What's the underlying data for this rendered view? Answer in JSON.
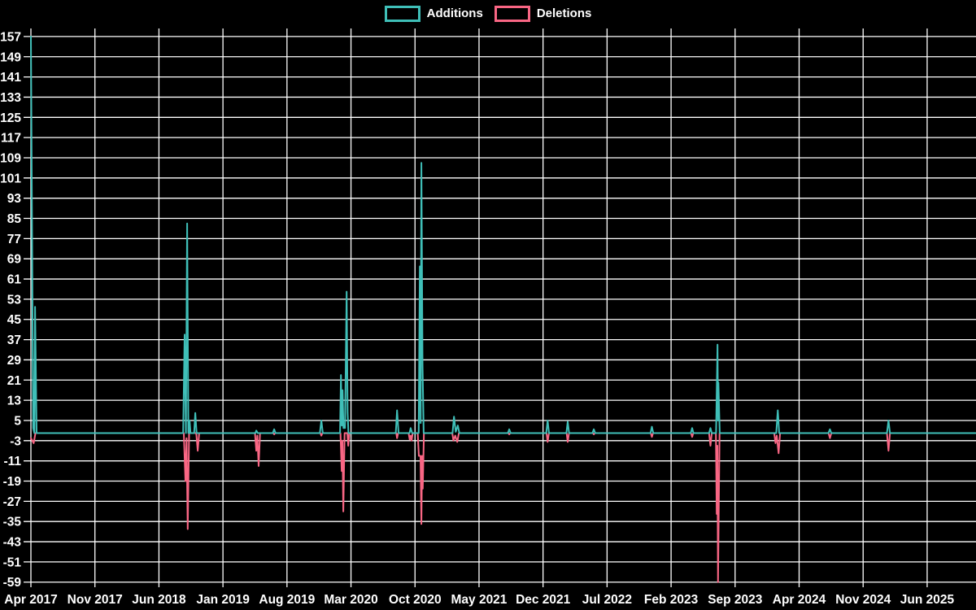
{
  "legend": {
    "additions_label": "Additions",
    "deletions_label": "Deletions"
  },
  "colors": {
    "background": "#000000",
    "grid": "#ffffff",
    "text": "#ffffff",
    "additions": "#3fbfb8",
    "deletions": "#f96684"
  },
  "chart_data": {
    "type": "line",
    "title": "",
    "xlabel": "",
    "ylabel": "",
    "legend_position": "top-center",
    "grid": true,
    "x_axis": {
      "tick_labels": [
        "Apr 2017",
        "Nov 2017",
        "Jun 2018",
        "Jan 2019",
        "Aug 2019",
        "Mar 2020",
        "Oct 2020",
        "May 2021",
        "Dec 2021",
        "Jul 2022",
        "Feb 2023",
        "Sep 2023",
        "Apr 2024",
        "Nov 2024",
        "Jun 2025"
      ],
      "months_per_tick": 7,
      "total_months_drawn": 103.3
    },
    "y_axis": {
      "min": -59,
      "max": 157,
      "tick_step": 8,
      "tick_labels": [
        "157",
        "149",
        "141",
        "133",
        "125",
        "117",
        "109",
        "101",
        "93",
        "85",
        "77",
        "69",
        "61",
        "53",
        "45",
        "37",
        "29",
        "21",
        "13",
        "5",
        "-3",
        "-11",
        "-19",
        "-27",
        "-35",
        "-43",
        "-51",
        "-59"
      ]
    },
    "series": [
      {
        "name": "Additions",
        "color_key": "additions",
        "points_months_vs_value": [
          [
            0,
            157
          ],
          [
            0.25,
            2
          ],
          [
            0.38,
            0
          ],
          [
            0.45,
            50
          ],
          [
            0.62,
            0
          ],
          [
            16.65,
            0
          ],
          [
            16.81,
            39
          ],
          [
            16.95,
            0
          ],
          [
            17.08,
            83
          ],
          [
            17.22,
            0
          ],
          [
            17.3,
            0
          ],
          [
            17.35,
            5
          ],
          [
            17.45,
            0
          ],
          [
            17.85,
            0
          ],
          [
            17.97,
            8
          ],
          [
            18.12,
            0
          ],
          [
            24.55,
            0
          ],
          [
            24.64,
            1
          ],
          [
            24.8,
            0
          ],
          [
            26.45,
            0
          ],
          [
            26.6,
            1.5
          ],
          [
            26.75,
            0
          ],
          [
            31.6,
            0
          ],
          [
            31.76,
            5
          ],
          [
            31.92,
            0
          ],
          [
            33.8,
            0
          ],
          [
            33.9,
            23
          ],
          [
            34.0,
            3
          ],
          [
            34.08,
            17
          ],
          [
            34.18,
            2
          ],
          [
            34.35,
            2
          ],
          [
            34.52,
            56
          ],
          [
            34.63,
            8
          ],
          [
            34.72,
            0
          ],
          [
            39.9,
            0
          ],
          [
            40.04,
            9
          ],
          [
            40.2,
            0
          ],
          [
            41.4,
            0
          ],
          [
            41.52,
            2
          ],
          [
            41.68,
            0
          ],
          [
            42.4,
            0
          ],
          [
            42.53,
            66
          ],
          [
            42.62,
            4
          ],
          [
            42.7,
            107
          ],
          [
            42.82,
            27
          ],
          [
            42.95,
            0
          ],
          [
            46.1,
            0
          ],
          [
            46.26,
            6.5
          ],
          [
            46.45,
            0.5
          ],
          [
            46.68,
            3
          ],
          [
            46.85,
            0
          ],
          [
            52.15,
            0
          ],
          [
            52.3,
            1.5
          ],
          [
            52.45,
            0
          ],
          [
            56.35,
            0
          ],
          [
            56.5,
            5
          ],
          [
            56.65,
            0
          ],
          [
            58.55,
            0
          ],
          [
            58.7,
            4.5
          ],
          [
            58.85,
            0
          ],
          [
            61.4,
            0
          ],
          [
            61.55,
            1.5
          ],
          [
            61.7,
            0
          ],
          [
            67.75,
            0
          ],
          [
            67.9,
            2.5
          ],
          [
            68.05,
            0
          ],
          [
            72.15,
            0
          ],
          [
            72.3,
            2
          ],
          [
            72.45,
            0
          ],
          [
            74.15,
            0
          ],
          [
            74.3,
            2
          ],
          [
            74.45,
            0
          ],
          [
            74.92,
            0
          ],
          [
            75.08,
            35
          ],
          [
            75.13,
            5
          ],
          [
            75.18,
            20
          ],
          [
            75.32,
            0
          ],
          [
            81.5,
            0
          ],
          [
            81.67,
            9
          ],
          [
            81.82,
            0
          ],
          [
            87.2,
            0
          ],
          [
            87.37,
            1.5
          ],
          [
            87.52,
            0
          ],
          [
            93.6,
            0
          ],
          [
            93.77,
            5
          ],
          [
            93.93,
            0
          ],
          [
            103.3,
            0
          ]
        ]
      },
      {
        "name": "Deletions",
        "color_key": "deletions",
        "points_months_vs_value": [
          [
            0,
            -2
          ],
          [
            0.3,
            -4
          ],
          [
            0.5,
            0
          ],
          [
            16.72,
            0
          ],
          [
            16.9,
            -19
          ],
          [
            17.02,
            -2
          ],
          [
            17.15,
            -38
          ],
          [
            17.3,
            0
          ],
          [
            18.08,
            0
          ],
          [
            18.24,
            -7
          ],
          [
            18.4,
            0
          ],
          [
            24.5,
            0
          ],
          [
            24.64,
            -7
          ],
          [
            24.76,
            -1
          ],
          [
            24.9,
            -13
          ],
          [
            25.05,
            0
          ],
          [
            26.5,
            0
          ],
          [
            26.6,
            -0.5
          ],
          [
            26.72,
            0
          ],
          [
            31.65,
            0
          ],
          [
            31.76,
            -1
          ],
          [
            31.88,
            0
          ],
          [
            33.85,
            0
          ],
          [
            33.98,
            -15
          ],
          [
            34.06,
            -3
          ],
          [
            34.16,
            -31
          ],
          [
            34.3,
            0
          ],
          [
            34.6,
            0
          ],
          [
            34.7,
            -5
          ],
          [
            34.82,
            0
          ],
          [
            39.95,
            0
          ],
          [
            40.04,
            -2
          ],
          [
            40.15,
            0
          ],
          [
            41.3,
            0
          ],
          [
            41.42,
            -2.5
          ],
          [
            41.52,
            -1
          ],
          [
            41.62,
            -3
          ],
          [
            41.75,
            0
          ],
          [
            42.3,
            0
          ],
          [
            42.42,
            -9
          ],
          [
            42.6,
            -9
          ],
          [
            42.7,
            -36
          ],
          [
            42.78,
            -9
          ],
          [
            42.85,
            -22
          ],
          [
            42.97,
            0
          ],
          [
            46.08,
            0
          ],
          [
            46.2,
            -3
          ],
          [
            46.4,
            -1
          ],
          [
            46.62,
            -3.5
          ],
          [
            46.8,
            0
          ],
          [
            52.2,
            0
          ],
          [
            52.3,
            -0.5
          ],
          [
            52.42,
            0
          ],
          [
            56.38,
            0
          ],
          [
            56.5,
            -3.5
          ],
          [
            56.64,
            0
          ],
          [
            58.58,
            0
          ],
          [
            58.7,
            -3.5
          ],
          [
            58.84,
            0
          ],
          [
            61.45,
            0
          ],
          [
            61.55,
            -0.5
          ],
          [
            61.67,
            0
          ],
          [
            67.78,
            0
          ],
          [
            67.9,
            -1.5
          ],
          [
            68.03,
            0
          ],
          [
            72.18,
            0
          ],
          [
            72.3,
            -1.5
          ],
          [
            72.43,
            0
          ],
          [
            74.15,
            0
          ],
          [
            74.3,
            -5
          ],
          [
            74.45,
            0
          ],
          [
            74.9,
            0
          ],
          [
            74.99,
            -32
          ],
          [
            75.06,
            -5
          ],
          [
            75.13,
            -59
          ],
          [
            75.3,
            0
          ],
          [
            81.28,
            0
          ],
          [
            81.42,
            -4
          ],
          [
            81.55,
            -1
          ],
          [
            81.76,
            -8
          ],
          [
            81.92,
            0
          ],
          [
            87.22,
            0
          ],
          [
            87.37,
            -2
          ],
          [
            87.52,
            0
          ],
          [
            93.6,
            0
          ],
          [
            93.77,
            -7
          ],
          [
            93.93,
            0
          ],
          [
            103.3,
            0
          ]
        ]
      }
    ]
  }
}
